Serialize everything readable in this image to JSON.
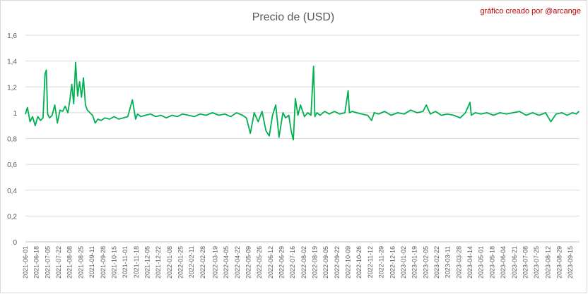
{
  "chart_data": {
    "type": "line",
    "title": "Precio de (USD)",
    "credit": "gráfico creado por @arcange",
    "xlabel": "",
    "ylabel": "",
    "ylim": [
      0,
      1.6
    ],
    "y_ticks": [
      "0",
      "0,2",
      "0,4",
      "0,6",
      "0,8",
      "1",
      "1,2",
      "1,4",
      "1,6"
    ],
    "x_ticks": [
      "2021-06-01",
      "2021-06-18",
      "2021-07-05",
      "2021-07-22",
      "2021-08-08",
      "2021-08-25",
      "2021-09-11",
      "2021-09-28",
      "2021-10-15",
      "2021-11-01",
      "2021-11-18",
      "2021-12-05",
      "2021-12-22",
      "2022-01-08",
      "2022-01-25",
      "2022-02-11",
      "2022-02-28",
      "2022-03-19",
      "2022-04-05",
      "2022-04-22",
      "2022-05-09",
      "2022-05-26",
      "2022-06-12",
      "2022-06-29",
      "2022-07-16",
      "2022-08-02",
      "2022-08-19",
      "2022-09-05",
      "2022-09-22",
      "2022-10-09",
      "2022-10-26",
      "2022-11-12",
      "2022-11-29",
      "2022-12-16",
      "2023-01-02",
      "2023-01-19",
      "2023-02-05",
      "2023-02-22",
      "2023-03-11",
      "2023-03-28",
      "2023-04-14",
      "2023-05-01",
      "2023-05-18",
      "2023-06-04",
      "2023-06-21",
      "2023-07-08",
      "2023-07-25",
      "2023-08-12",
      "2023-08-29",
      "2023-09-15"
    ],
    "grid": "horizontal",
    "legend": "none",
    "color": "#00b050",
    "series": [
      {
        "x": [
          "2021-06-01",
          "2021-06-04",
          "2021-06-08",
          "2021-06-12",
          "2021-06-16",
          "2021-06-20",
          "2021-06-24",
          "2021-06-28",
          "2021-07-01",
          "2021-07-03",
          "2021-07-05",
          "2021-07-08",
          "2021-07-12",
          "2021-07-16",
          "2021-07-20",
          "2021-07-24",
          "2021-07-28",
          "2021-08-01",
          "2021-08-05",
          "2021-08-08",
          "2021-08-11",
          "2021-08-14",
          "2021-08-17",
          "2021-08-20",
          "2021-08-23",
          "2021-08-26",
          "2021-08-29",
          "2021-09-01",
          "2021-09-04",
          "2021-09-08",
          "2021-09-12",
          "2021-09-16",
          "2021-09-20",
          "2021-09-25",
          "2021-10-01",
          "2021-10-08",
          "2021-10-15",
          "2021-10-22",
          "2021-10-29",
          "2021-11-05",
          "2021-11-12",
          "2021-11-17",
          "2021-11-20",
          "2021-11-25",
          "2021-12-02",
          "2021-12-10",
          "2021-12-18",
          "2021-12-26",
          "2022-01-03",
          "2022-01-12",
          "2022-01-20",
          "2022-01-28",
          "2022-02-06",
          "2022-02-15",
          "2022-02-24",
          "2022-03-05",
          "2022-03-15",
          "2022-03-25",
          "2022-04-03",
          "2022-04-12",
          "2022-04-21",
          "2022-04-30",
          "2022-05-06",
          "2022-05-12",
          "2022-05-18",
          "2022-05-24",
          "2022-05-30",
          "2022-06-05",
          "2022-06-10",
          "2022-06-15",
          "2022-06-20",
          "2022-06-25",
          "2022-07-01",
          "2022-07-05",
          "2022-07-10",
          "2022-07-14",
          "2022-07-17",
          "2022-07-20",
          "2022-07-24",
          "2022-07-28",
          "2022-08-03",
          "2022-08-08",
          "2022-08-13",
          "2022-08-17",
          "2022-08-19",
          "2022-08-22",
          "2022-08-27",
          "2022-09-03",
          "2022-09-10",
          "2022-09-18",
          "2022-09-26",
          "2022-10-04",
          "2022-10-09",
          "2022-10-11",
          "2022-10-15",
          "2022-10-22",
          "2022-10-30",
          "2022-11-08",
          "2022-11-14",
          "2022-11-18",
          "2022-11-25",
          "2022-12-04",
          "2022-12-14",
          "2022-12-24",
          "2023-01-03",
          "2023-01-13",
          "2023-01-23",
          "2023-02-01",
          "2023-02-06",
          "2023-02-12",
          "2023-02-20",
          "2023-03-01",
          "2023-03-10",
          "2023-03-20",
          "2023-03-30",
          "2023-04-07",
          "2023-04-14",
          "2023-04-16",
          "2023-04-22",
          "2023-05-01",
          "2023-05-10",
          "2023-05-20",
          "2023-05-30",
          "2023-06-09",
          "2023-06-19",
          "2023-06-29",
          "2023-07-09",
          "2023-07-19",
          "2023-07-29",
          "2023-08-08",
          "2023-08-16",
          "2023-08-24",
          "2023-09-02",
          "2023-09-10",
          "2023-09-18",
          "2023-09-24",
          "2023-09-28"
        ],
        "y": [
          0.99,
          1.04,
          0.93,
          0.97,
          0.9,
          0.97,
          0.94,
          0.96,
          1.3,
          1.33,
          0.99,
          0.96,
          0.98,
          1.06,
          0.92,
          1.02,
          1.01,
          1.05,
          1.0,
          1.09,
          1.22,
          1.07,
          1.39,
          1.13,
          1.24,
          1.12,
          1.27,
          1.06,
          1.02,
          1.0,
          0.98,
          0.92,
          0.95,
          0.94,
          0.96,
          0.95,
          0.97,
          0.95,
          0.96,
          0.97,
          1.1,
          0.95,
          0.99,
          0.97,
          0.98,
          0.99,
          0.97,
          0.98,
          0.96,
          0.98,
          0.97,
          0.99,
          0.98,
          0.97,
          0.99,
          0.98,
          1.0,
          0.98,
          0.99,
          0.97,
          1.0,
          0.98,
          0.96,
          0.84,
          1.0,
          0.93,
          1.01,
          0.86,
          0.82,
          0.98,
          1.06,
          0.81,
          1.0,
          0.96,
          0.98,
          0.85,
          0.79,
          1.11,
          0.98,
          1.06,
          0.97,
          1.0,
          0.98,
          1.36,
          0.97,
          1.0,
          0.98,
          1.01,
          0.99,
          1.01,
          0.99,
          1.0,
          1.17,
          1.0,
          1.01,
          1.0,
          0.99,
          0.98,
          0.94,
          1.0,
          0.99,
          1.01,
          0.98,
          1.0,
          0.99,
          1.02,
          1.0,
          1.01,
          1.06,
          0.99,
          1.01,
          0.98,
          0.99,
          0.98,
          0.96,
          1.0,
          1.08,
          0.98,
          1.0,
          0.99,
          1.0,
          0.98,
          1.0,
          0.99,
          1.0,
          1.01,
          0.98,
          1.0,
          0.98,
          1.0,
          0.93,
          0.99,
          1.0,
          0.98,
          1.0,
          0.99,
          1.01
        ]
      }
    ]
  }
}
